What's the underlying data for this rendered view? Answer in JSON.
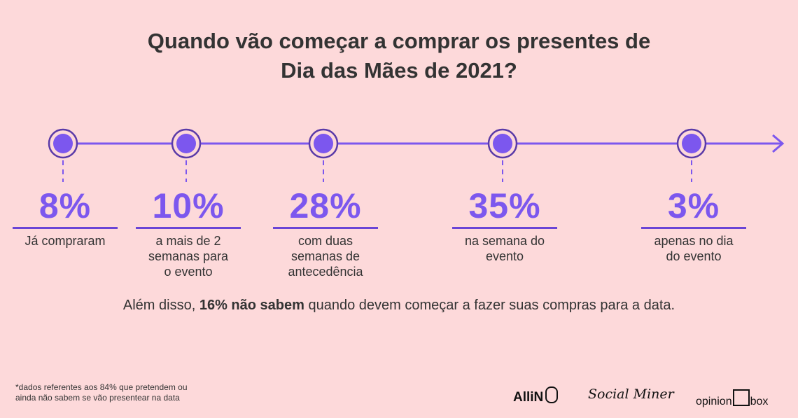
{
  "title_line1": "Quando vão começar a comprar os presentes de",
  "title_line2": "Dia das Mães de 2021?",
  "steps": [
    {
      "value": "8%",
      "lines": [
        "Já compraram"
      ]
    },
    {
      "value": "10%",
      "lines": [
        "a mais de 2",
        "semanas para",
        "o evento"
      ]
    },
    {
      "value": "28%",
      "lines": [
        "com duas",
        "semanas de",
        "antecedência"
      ]
    },
    {
      "value": "35%",
      "lines": [
        "na semana do",
        "evento"
      ]
    },
    {
      "value": "3%",
      "lines": [
        "apenas no dia",
        "do evento"
      ]
    }
  ],
  "note": {
    "pre": "Além disso, ",
    "bold": "16% não sabem",
    "post": " quando devem começar a fazer suas compras para a data."
  },
  "footnote": [
    "*dados referentes aos 84% que pretendem ou",
    "ainda não sabem se vão presentear na data"
  ],
  "logos": {
    "allin": "AlliN",
    "socialminer": "Social Miner",
    "opinion": "opinion",
    "box": "box"
  },
  "colors": {
    "accent": "#7c57ee",
    "dark": "#5a3aa8",
    "bg": "#fdd9da"
  }
}
